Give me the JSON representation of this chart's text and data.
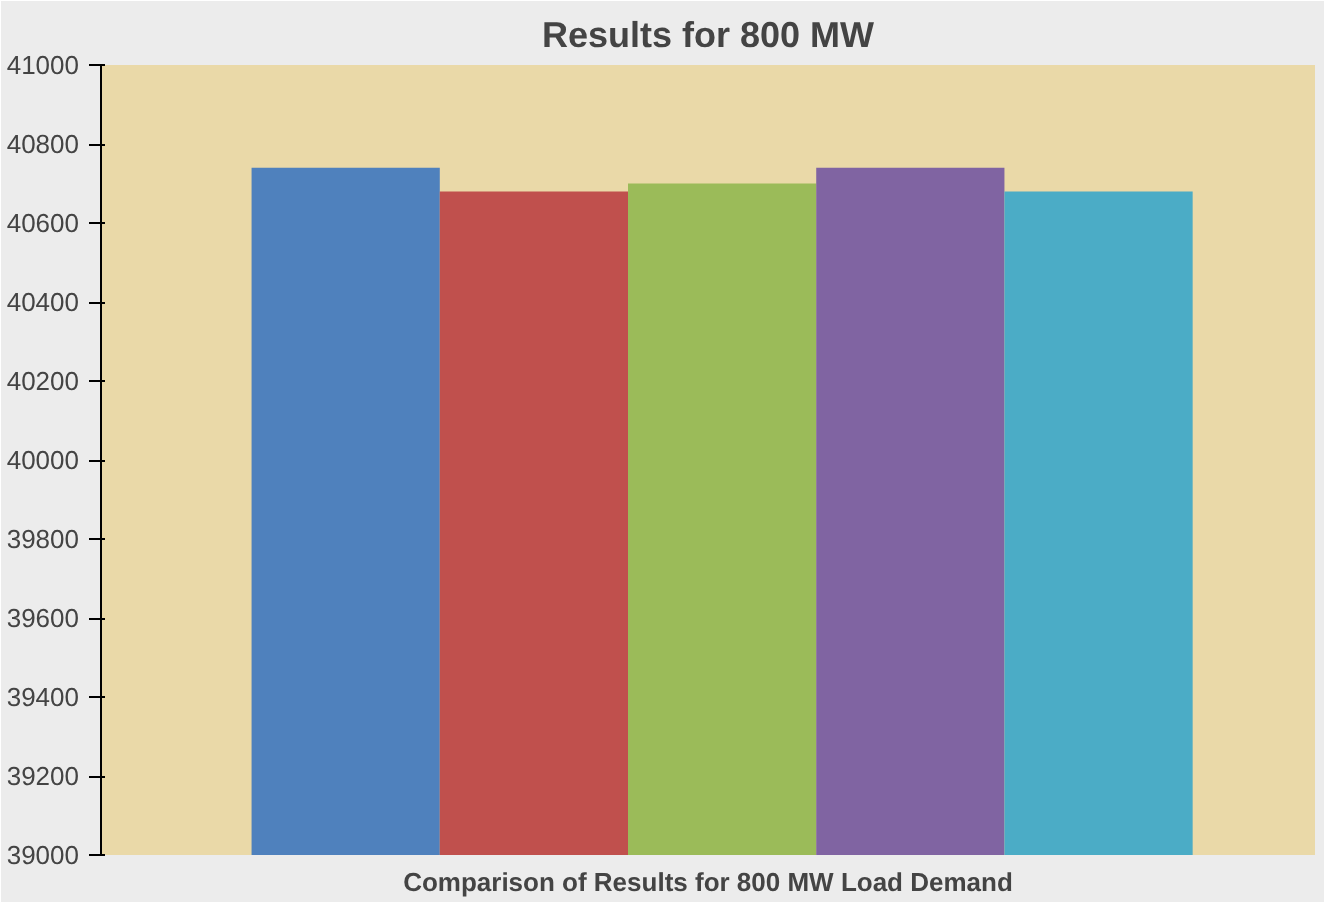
{
  "chart_data": {
    "type": "bar",
    "title": "Results for 800 MW",
    "xlabel": "Comparison of Results for 800 MW Load Demand",
    "categories": [
      null,
      null,
      null,
      null,
      null
    ],
    "values": [
      40740,
      40680,
      40700,
      40740,
      40680
    ],
    "colors": [
      "#4f81bd",
      "#c0504d",
      "#9bbb59",
      "#8064a2",
      "#4bacc6"
    ],
    "ylim": [
      39000,
      41000
    ],
    "yticks": [
      39000,
      39200,
      39400,
      39600,
      39800,
      40000,
      40200,
      40400,
      40600,
      40800,
      41000
    ],
    "tick_labels": "y",
    "grid": false
  }
}
